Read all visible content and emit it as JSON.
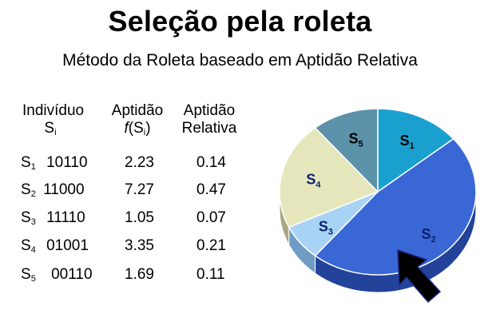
{
  "title": "Seleção pela roleta",
  "subtitle": "Método da Roleta baseado em Aptidão Relativa",
  "table": {
    "headers": {
      "individual": "Indivíduo",
      "individual_sym": "S",
      "individual_sub": "i",
      "fitness": "Aptidão",
      "fitness_fn": "f(S",
      "fitness_sub": "i",
      "fitness_close": ")",
      "relative_line1": "Aptidão",
      "relative_line2": "Relativa"
    },
    "rows": [
      {
        "sym": "S",
        "sub": "1",
        "code": "10110",
        "fitness": "2.23",
        "relative": "0.14"
      },
      {
        "sym": "S",
        "sub": "2",
        "code": "11000",
        "fitness": "7.27",
        "relative": "0.47"
      },
      {
        "sym": "S",
        "sub": "3",
        "code": "11110",
        "fitness": "1.05",
        "relative": "0.07"
      },
      {
        "sym": "S",
        "sub": "4",
        "code": "01001",
        "fitness": "3.35",
        "relative": "0.21"
      },
      {
        "sym": "S",
        "sub": "5",
        "code": "00110",
        "fitness": "1.69",
        "relative": "0.11"
      }
    ]
  },
  "wheel": {
    "slices": [
      {
        "sym": "S",
        "sub": "1",
        "fraction": 0.14,
        "color": "#1aa0cf",
        "side": "#0d6e92",
        "label_color": "#000000"
      },
      {
        "sym": "S",
        "sub": "2",
        "fraction": 0.47,
        "color": "#3a67d6",
        "side": "#23439a",
        "label_color": "#0b1f6e"
      },
      {
        "sym": "S",
        "sub": "3",
        "fraction": 0.07,
        "color": "#a9d3f5",
        "side": "#6f9cc4",
        "label_color": "#0b1f6e"
      },
      {
        "sym": "S",
        "sub": "4",
        "fraction": 0.21,
        "color": "#e6e6bc",
        "side": "#a9a882",
        "label_color": "#0b1f6e"
      },
      {
        "sym": "S",
        "sub": "5",
        "fraction": 0.11,
        "color": "#5c92aa",
        "side": "#3a6577",
        "label_color": "#000000"
      }
    ],
    "pointer_icon": "arrow-pointer-icon",
    "pointer_color": "#000000",
    "pointer_outline": "#1a2a8a"
  }
}
